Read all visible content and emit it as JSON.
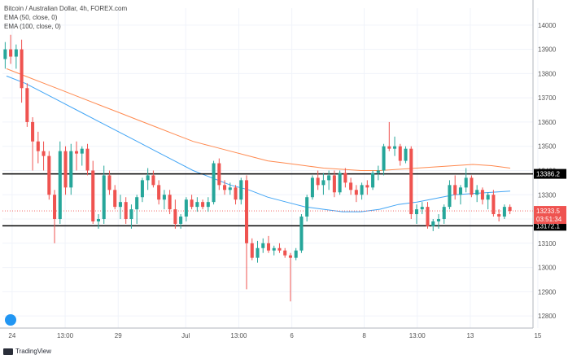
{
  "legend": {
    "title": "Bitcoin / Australian Dollar, 4h, FOREX.com",
    "ema50": "EMA (50, close, 0)",
    "ema100": "EMA (100, close, 0)"
  },
  "brand": "TradingView",
  "colors": {
    "up": "#26a69a",
    "down": "#ef5350",
    "ema50": "#42a5f5",
    "ema100": "#ff8a50",
    "level": "#000000"
  },
  "chart_data": {
    "type": "candlestick",
    "title": "Bitcoin / Australian Dollar, 4h, FOREX.com",
    "ylim": [
      12750,
      14070
    ],
    "y_ticks": [
      12800,
      12900,
      13000,
      13100,
      13200,
      13300,
      13400,
      13500,
      13600,
      13700,
      13800,
      13900,
      14000
    ],
    "x_range": [
      0,
      110
    ],
    "x_ticks": [
      {
        "x": 2,
        "label": "24"
      },
      {
        "x": 13,
        "label": "13:00"
      },
      {
        "x": 24,
        "label": "29"
      },
      {
        "x": 38,
        "label": "Jul"
      },
      {
        "x": 49,
        "label": "13:00"
      },
      {
        "x": 60,
        "label": "6"
      },
      {
        "x": 75,
        "label": "8"
      },
      {
        "x": 86,
        "label": "13:00"
      },
      {
        "x": 97,
        "label": "13"
      },
      {
        "x": 111,
        "label": "15"
      }
    ],
    "levels": [
      {
        "value": 13386.2,
        "label": "13386.2"
      },
      {
        "value": 13172.1,
        "label": "13172.1"
      }
    ],
    "last_price": {
      "value": 13233.5,
      "label": "13233.5",
      "timer": "03:51:34"
    },
    "candles": [
      [
        13860,
        13930,
        13820,
        13900
      ],
      [
        13900,
        13960,
        13840,
        13870
      ],
      [
        13870,
        13920,
        13820,
        13900
      ],
      [
        13900,
        13940,
        13680,
        13740
      ],
      [
        13740,
        13760,
        13580,
        13600
      ],
      [
        13600,
        13620,
        13400,
        13520
      ],
      [
        13520,
        13560,
        13430,
        13480
      ],
      [
        13480,
        13520,
        13400,
        13460
      ],
      [
        13460,
        13480,
        13280,
        13300
      ],
      [
        13300,
        13320,
        13100,
        13200
      ],
      [
        13200,
        13520,
        13180,
        13480
      ],
      [
        13480,
        13500,
        13300,
        13330
      ],
      [
        13330,
        13510,
        13300,
        13480
      ],
      [
        13480,
        13520,
        13400,
        13470
      ],
      [
        13470,
        13500,
        13420,
        13490
      ],
      [
        13490,
        13510,
        13380,
        13400
      ],
      [
        13400,
        13440,
        13180,
        13190
      ],
      [
        13190,
        13220,
        13160,
        13200
      ],
      [
        13200,
        13420,
        13180,
        13380
      ],
      [
        13380,
        13400,
        13300,
        13320
      ],
      [
        13320,
        13340,
        13240,
        13250
      ],
      [
        13250,
        13300,
        13200,
        13270
      ],
      [
        13270,
        13290,
        13180,
        13200
      ],
      [
        13200,
        13260,
        13160,
        13240
      ],
      [
        13240,
        13300,
        13180,
        13290
      ],
      [
        13290,
        13370,
        13270,
        13360
      ],
      [
        13360,
        13410,
        13320,
        13380
      ],
      [
        13380,
        13400,
        13330,
        13340
      ],
      [
        13340,
        13360,
        13260,
        13280
      ],
      [
        13280,
        13320,
        13240,
        13300
      ],
      [
        13300,
        13320,
        13220,
        13240
      ],
      [
        13240,
        13280,
        13160,
        13180
      ],
      [
        13180,
        13220,
        13160,
        13210
      ],
      [
        13210,
        13290,
        13190,
        13280
      ],
      [
        13280,
        13300,
        13240,
        13250
      ],
      [
        13250,
        13290,
        13230,
        13270
      ],
      [
        13270,
        13280,
        13240,
        13250
      ],
      [
        13250,
        13290,
        13230,
        13270
      ],
      [
        13270,
        13440,
        13260,
        13430
      ],
      [
        13430,
        13450,
        13320,
        13340
      ],
      [
        13340,
        13360,
        13300,
        13320
      ],
      [
        13320,
        13350,
        13300,
        13330
      ],
      [
        13330,
        13340,
        13260,
        13280
      ],
      [
        13280,
        13370,
        13260,
        13360
      ],
      [
        13360,
        13380,
        12910,
        13100
      ],
      [
        13100,
        13120,
        13030,
        13040
      ],
      [
        13040,
        13110,
        13020,
        13080
      ],
      [
        13080,
        13120,
        13060,
        13100
      ],
      [
        13100,
        13130,
        13060,
        13070
      ],
      [
        13070,
        13090,
        13050,
        13080
      ],
      [
        13080,
        13100,
        13060,
        13070
      ],
      [
        13070,
        13080,
        13040,
        13050
      ],
      [
        13050,
        13060,
        12860,
        13040
      ],
      [
        13040,
        13080,
        13030,
        13070
      ],
      [
        13070,
        13220,
        13060,
        13210
      ],
      [
        13210,
        13300,
        13190,
        13290
      ],
      [
        13290,
        13380,
        13280,
        13370
      ],
      [
        13370,
        13400,
        13320,
        13340
      ],
      [
        13340,
        13390,
        13300,
        13360
      ],
      [
        13360,
        13400,
        13320,
        13380
      ],
      [
        13380,
        13400,
        13290,
        13310
      ],
      [
        13310,
        13400,
        13300,
        13390
      ],
      [
        13390,
        13410,
        13330,
        13350
      ],
      [
        13350,
        13370,
        13300,
        13320
      ],
      [
        13320,
        13340,
        13270,
        13300
      ],
      [
        13300,
        13350,
        13280,
        13340
      ],
      [
        13340,
        13360,
        13300,
        13330
      ],
      [
        13330,
        13400,
        13320,
        13390
      ],
      [
        13390,
        13420,
        13360,
        13400
      ],
      [
        13400,
        13510,
        13380,
        13500
      ],
      [
        13500,
        13600,
        13480,
        13490
      ],
      [
        13490,
        13540,
        13460,
        13500
      ],
      [
        13500,
        13510,
        13420,
        13440
      ],
      [
        13440,
        13500,
        13430,
        13490
      ],
      [
        13490,
        13500,
        13200,
        13220
      ],
      [
        13220,
        13260,
        13180,
        13240
      ],
      [
        13240,
        13270,
        13220,
        13250
      ],
      [
        13250,
        13270,
        13160,
        13170
      ],
      [
        13170,
        13200,
        13150,
        13190
      ],
      [
        13190,
        13220,
        13160,
        13200
      ],
      [
        13200,
        13260,
        13180,
        13250
      ],
      [
        13250,
        13360,
        13240,
        13340
      ],
      [
        13340,
        13380,
        13280,
        13300
      ],
      [
        13300,
        13340,
        13260,
        13330
      ],
      [
        13330,
        13410,
        13310,
        13370
      ],
      [
        13370,
        13380,
        13290,
        13300
      ],
      [
        13300,
        13340,
        13270,
        13320
      ],
      [
        13320,
        13330,
        13260,
        13280
      ],
      [
        13280,
        13310,
        13240,
        13300
      ],
      [
        13300,
        13320,
        13210,
        13220
      ],
      [
        13220,
        13240,
        13190,
        13210
      ],
      [
        13210,
        13260,
        13200,
        13250
      ],
      [
        13250,
        13260,
        13220,
        13233.5
      ]
    ],
    "ema50": [
      13790,
      13760,
      13720,
      13680,
      13640,
      13600,
      13560,
      13520,
      13480,
      13440,
      13400,
      13370,
      13340,
      13320,
      13290,
      13270,
      13250,
      13240,
      13230,
      13230,
      13240,
      13260,
      13270,
      13285,
      13300,
      13305,
      13310,
      13315
    ],
    "ema100": [
      13820,
      13790,
      13760,
      13730,
      13700,
      13670,
      13640,
      13610,
      13580,
      13550,
      13520,
      13500,
      13480,
      13460,
      13440,
      13430,
      13420,
      13410,
      13405,
      13400,
      13400,
      13405,
      13410,
      13415,
      13420,
      13425,
      13420,
      13410
    ]
  }
}
